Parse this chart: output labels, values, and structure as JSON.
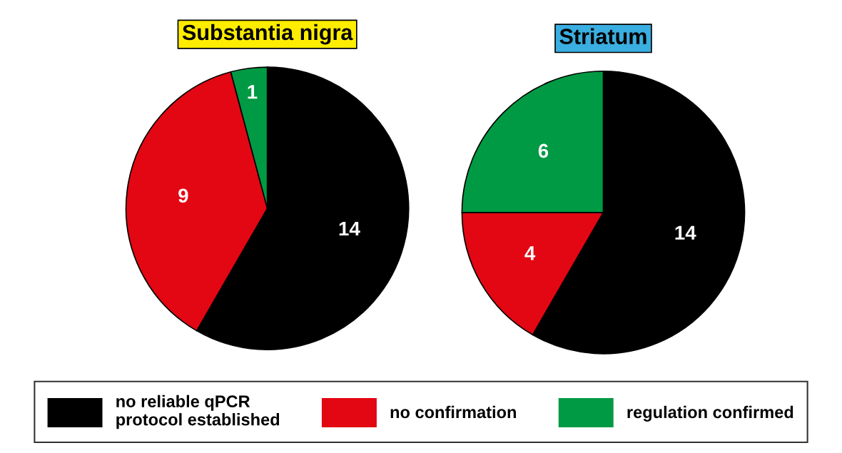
{
  "chart_data": [
    {
      "type": "pie",
      "title": "Substantia nigra",
      "categories": [
        "no reliable qPCR\nprotocol established",
        "no confirmation",
        "regulation confirmed"
      ],
      "values": [
        14,
        9,
        1
      ],
      "colors": [
        "#000000",
        "#e30613",
        "#009a44"
      ],
      "data_labels": true,
      "legend": "bottom"
    },
    {
      "type": "pie",
      "title": "Striatum",
      "categories": [
        null,
        null,
        null
      ],
      "values": [
        14,
        4,
        6
      ],
      "colors": [
        "#000000",
        "#e30613",
        "#009a44"
      ],
      "data_labels": true
    }
  ]
}
